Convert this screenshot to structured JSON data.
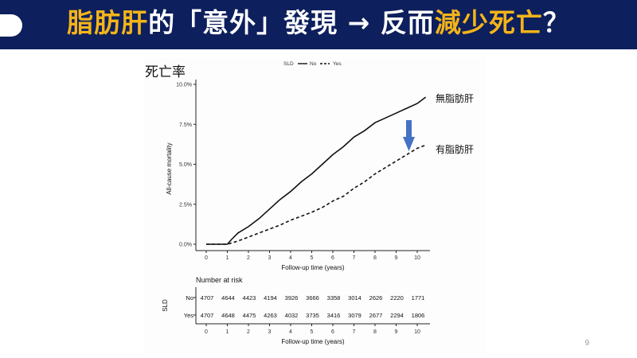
{
  "slide": {
    "title_parts": [
      {
        "text": "脂肪肝",
        "highlight": true
      },
      {
        "text": "的「意外」發現 → 反而",
        "highlight": false
      },
      {
        "text": "減少死亡",
        "highlight": true
      },
      {
        "text": "？",
        "highlight": false
      }
    ],
    "page_number": "9",
    "colors": {
      "header_bg": "#0d1f5c",
      "highlight": "#f4b41a",
      "arrow": "#4472c4"
    }
  },
  "chart_data": {
    "type": "line",
    "corner_label": "死亡率",
    "legend": {
      "title": "SLD",
      "placement": "top",
      "entries": [
        {
          "label": "No",
          "style": "solid"
        },
        {
          "label": "Yes",
          "style": "dashed"
        }
      ]
    },
    "ylabel": "All-cause mortality",
    "xlabel": "Follow-up time (years)",
    "xlim": [
      0,
      10.4
    ],
    "ylim": [
      0,
      10
    ],
    "y_ticks": [
      0,
      2.5,
      5,
      7.5,
      10
    ],
    "y_tick_labels": [
      "0.0%",
      "2.5%",
      "5.0%",
      "7.5%",
      "10.0%"
    ],
    "x_ticks": [
      0,
      1,
      2,
      3,
      4,
      5,
      6,
      7,
      8,
      9,
      10
    ],
    "x_tick_labels": [
      "0",
      "1",
      "2",
      "3",
      "4",
      "5",
      "6",
      "7",
      "8",
      "9",
      "10"
    ],
    "series": [
      {
        "name": "No",
        "style": "solid",
        "x": [
          0,
          1,
          1.2,
          1.5,
          2,
          2.5,
          3,
          3.5,
          4,
          4.5,
          5,
          5.5,
          6,
          6.5,
          7,
          7.5,
          8,
          8.5,
          9,
          9.5,
          10,
          10.4
        ],
        "y": [
          0,
          0,
          0.3,
          0.7,
          1.1,
          1.6,
          2.2,
          2.8,
          3.3,
          3.9,
          4.4,
          5.0,
          5.6,
          6.1,
          6.7,
          7.1,
          7.6,
          7.9,
          8.2,
          8.5,
          8.8,
          9.2
        ]
      },
      {
        "name": "Yes",
        "style": "dashed",
        "x": [
          0,
          1,
          1.5,
          2,
          2.5,
          3,
          3.5,
          4,
          4.5,
          5,
          5.5,
          6,
          6.5,
          7,
          7.5,
          8,
          8.5,
          9,
          9.5,
          10,
          10.4
        ],
        "y": [
          0,
          0,
          0.2,
          0.45,
          0.7,
          0.95,
          1.2,
          1.5,
          1.75,
          2.0,
          2.3,
          2.7,
          3.0,
          3.5,
          3.9,
          4.4,
          4.8,
          5.2,
          5.6,
          6.0,
          6.2
        ]
      }
    ],
    "annotations": {
      "no_label": "無脂肪肝",
      "yes_label": "有脂肪肝"
    },
    "risk_table": {
      "title": "Number at risk",
      "ylabel": "SLD",
      "xlabel": "Follow-up time (years)",
      "x": [
        0,
        1,
        2,
        3,
        4,
        5,
        6,
        7,
        8,
        9,
        10
      ],
      "rows": [
        {
          "label": "No",
          "values": [
            "4707",
            "4644",
            "4423",
            "4194",
            "3926",
            "3666",
            "3358",
            "3014",
            "2626",
            "2220",
            "1771"
          ]
        },
        {
          "label": "Yes",
          "values": [
            "4707",
            "4648",
            "4475",
            "4263",
            "4032",
            "3735",
            "3416",
            "3079",
            "2677",
            "2294",
            "1806"
          ]
        }
      ]
    }
  }
}
